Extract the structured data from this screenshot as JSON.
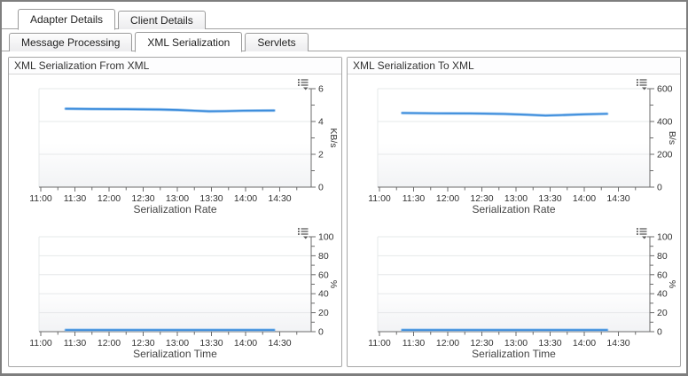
{
  "tabs": {
    "primary": [
      {
        "label": "Adapter Details",
        "active": true
      },
      {
        "label": "Client Details",
        "active": false
      }
    ],
    "secondary": [
      {
        "label": "Message Processing",
        "active": false
      },
      {
        "label": "XML Serialization",
        "active": true
      },
      {
        "label": "Servlets",
        "active": false
      }
    ]
  },
  "panels": [
    {
      "title": "XML Serialization From XML",
      "charts": [
        0,
        2
      ]
    },
    {
      "title": "XML Serialization To XML",
      "charts": [
        1,
        3
      ]
    }
  ],
  "colors": {
    "line": "#3a8bdb",
    "line_halo": "#a6ccf1",
    "grid": "#e6e8ea",
    "axis": "#6b6b6b",
    "tick_text": "#333333",
    "title_text": "#444444",
    "plot_bg_top": "#ffffff",
    "plot_bg_bottom": "#f2f3f5",
    "icon": "#5a5a5a"
  },
  "chart_data": [
    {
      "type": "line",
      "title": "Serialization Rate",
      "panel": "XML Serialization From XML",
      "slot": 0,
      "ylabel": "KB/s",
      "ylim": [
        0,
        6
      ],
      "yticks_major": [
        0,
        2,
        4,
        6
      ],
      "yticks_minor": [
        1,
        3,
        5
      ],
      "x_domain_minutes": [
        660,
        900
      ],
      "x_minor_step": 15,
      "xticks": [
        {
          "label": "11:00",
          "m": 660
        },
        {
          "label": "11:30",
          "m": 690
        },
        {
          "label": "12:00",
          "m": 720
        },
        {
          "label": "12:30",
          "m": 750
        },
        {
          "label": "13:00",
          "m": 780
        },
        {
          "label": "13:30",
          "m": 810
        },
        {
          "label": "14:00",
          "m": 840
        },
        {
          "label": "14:30",
          "m": 870
        }
      ],
      "grid": true,
      "legend_icon": true,
      "series": [
        {
          "name": "Serialization Rate",
          "points": [
            [
              682,
              4.78
            ],
            [
              705,
              4.76
            ],
            [
              735,
              4.75
            ],
            [
              765,
              4.73
            ],
            [
              780,
              4.7
            ],
            [
              795,
              4.66
            ],
            [
              808,
              4.62
            ],
            [
              822,
              4.63
            ],
            [
              838,
              4.66
            ],
            [
              865,
              4.67
            ]
          ]
        }
      ]
    },
    {
      "type": "line",
      "title": "Serialization Rate",
      "panel": "XML Serialization To XML",
      "slot": 0,
      "ylabel": "B/s",
      "ylim": [
        0,
        600
      ],
      "yticks_major": [
        0,
        200,
        400,
        600
      ],
      "yticks_minor": [
        100,
        300,
        500
      ],
      "x_domain_minutes": [
        660,
        900
      ],
      "x_minor_step": 15,
      "xticks": [
        {
          "label": "11:00",
          "m": 660
        },
        {
          "label": "11:30",
          "m": 690
        },
        {
          "label": "12:00",
          "m": 720
        },
        {
          "label": "12:30",
          "m": 750
        },
        {
          "label": "13:00",
          "m": 780
        },
        {
          "label": "13:30",
          "m": 810
        },
        {
          "label": "14:00",
          "m": 840
        },
        {
          "label": "14:30",
          "m": 870
        }
      ],
      "grid": true,
      "legend_icon": true,
      "series": [
        {
          "name": "Serialization Rate",
          "points": [
            [
              680,
              452
            ],
            [
              710,
              450
            ],
            [
              740,
              449
            ],
            [
              770,
              446
            ],
            [
              790,
              441
            ],
            [
              806,
              436
            ],
            [
              820,
              439
            ],
            [
              840,
              444
            ],
            [
              860,
              447
            ]
          ]
        }
      ]
    },
    {
      "type": "line",
      "title": "Serialization Time",
      "panel": "XML Serialization From XML",
      "slot": 1,
      "ylabel": "%",
      "ylim": [
        0,
        100
      ],
      "yticks_major": [
        0,
        20,
        40,
        60,
        80,
        100
      ],
      "yticks_minor": [
        10,
        30,
        50,
        70,
        90
      ],
      "x_domain_minutes": [
        660,
        900
      ],
      "x_minor_step": 15,
      "xticks": [
        {
          "label": "11:00",
          "m": 660
        },
        {
          "label": "11:30",
          "m": 690
        },
        {
          "label": "12:00",
          "m": 720
        },
        {
          "label": "12:30",
          "m": 750
        },
        {
          "label": "13:00",
          "m": 780
        },
        {
          "label": "13:30",
          "m": 810
        },
        {
          "label": "14:00",
          "m": 840
        },
        {
          "label": "14:30",
          "m": 870
        }
      ],
      "grid": true,
      "legend_icon": true,
      "series": [
        {
          "name": "Serialization Time",
          "points": [
            [
              682,
              1.8
            ],
            [
              740,
              1.8
            ],
            [
              800,
              1.8
            ],
            [
              865,
              1.8
            ]
          ]
        }
      ]
    },
    {
      "type": "line",
      "title": "Serialization Time",
      "panel": "XML Serialization To XML",
      "slot": 1,
      "ylabel": "%",
      "ylim": [
        0,
        100
      ],
      "yticks_major": [
        0,
        20,
        40,
        60,
        80,
        100
      ],
      "yticks_minor": [
        10,
        30,
        50,
        70,
        90
      ],
      "x_domain_minutes": [
        660,
        900
      ],
      "x_minor_step": 15,
      "xticks": [
        {
          "label": "11:00",
          "m": 660
        },
        {
          "label": "11:30",
          "m": 690
        },
        {
          "label": "12:00",
          "m": 720
        },
        {
          "label": "12:30",
          "m": 750
        },
        {
          "label": "13:00",
          "m": 780
        },
        {
          "label": "13:30",
          "m": 810
        },
        {
          "label": "14:00",
          "m": 840
        },
        {
          "label": "14:30",
          "m": 870
        }
      ],
      "grid": true,
      "legend_icon": true,
      "series": [
        {
          "name": "Serialization Time",
          "points": [
            [
              680,
              1.8
            ],
            [
              740,
              1.8
            ],
            [
              800,
              1.8
            ],
            [
              860,
              1.8
            ]
          ]
        }
      ]
    }
  ]
}
